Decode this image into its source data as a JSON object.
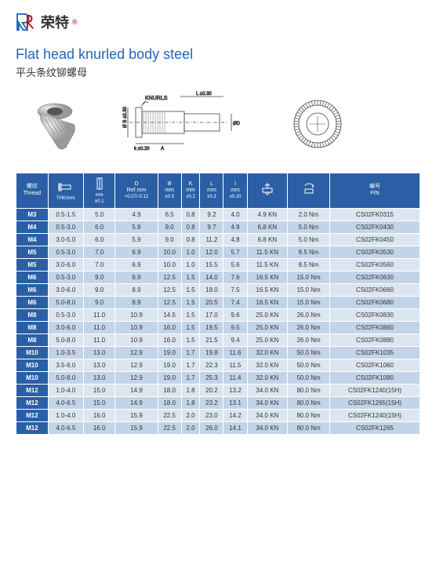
{
  "brand": {
    "name": "荣特",
    "sup": "®"
  },
  "title": {
    "en": "Flat head knurled body steel",
    "cn": "平头条纹铆螺母"
  },
  "diagram": {
    "knurls_label": "KNURLS"
  },
  "table": {
    "columns": [
      {
        "l1": "螺纹",
        "l2": "Thread",
        "sub": ""
      },
      {
        "l1": "",
        "l2": "THK/mm",
        "sub": ""
      },
      {
        "l1": "",
        "l2": "mm",
        "sub": "±0.1"
      },
      {
        "l1": "D",
        "l2": "Ref mm",
        "sub": "+0.07/-0.12"
      },
      {
        "l1": "B",
        "l2": "mm",
        "sub": "±0.3"
      },
      {
        "l1": "K",
        "l2": "mm",
        "sub": "±0.2"
      },
      {
        "l1": "L",
        "l2": "mm",
        "sub": "±0.3"
      },
      {
        "l1": "l",
        "l2": "mm",
        "sub": "±0.20"
      },
      {
        "l1": "",
        "l2": "",
        "sub": ""
      },
      {
        "l1": "",
        "l2": "",
        "sub": ""
      },
      {
        "l1": "编号",
        "l2": "P/N",
        "sub": ""
      }
    ],
    "rows": [
      [
        "M3",
        "0.5-1.5",
        "5.0",
        "4.9",
        "6.5",
        "0.8",
        "9.2",
        "4.0",
        "4.9 KN",
        "2.0 Nm",
        "CS02FK0315"
      ],
      [
        "M4",
        "0.5-3.0",
        "6.0",
        "5.9",
        "9.0",
        "0.8",
        "9.7",
        "4.9",
        "6.8 KN",
        "5.0 Nm",
        "CS02FK0430"
      ],
      [
        "M4",
        "3.0-5.0",
        "6.0",
        "5.9",
        "9.0",
        "0.8",
        "11.2",
        "4.8",
        "6.8 KN",
        "5.0 Nm",
        "CS02FK0450"
      ],
      [
        "M5",
        "0.5-3.0",
        "7.0",
        "6.9",
        "10.0",
        "1.0",
        "12.0",
        "5.7",
        "11.5 KN",
        "8.5 Nm",
        "CS02FK0530"
      ],
      [
        "M5",
        "3.0-6.0",
        "7.0",
        "6.9",
        "10.0",
        "1.0",
        "15.5",
        "5.6",
        "11.5 KN",
        "8.5 Nm",
        "CS02FK0560"
      ],
      [
        "M6",
        "0.5-3.0",
        "9.0",
        "8.9",
        "12.5",
        "1.5",
        "14.0",
        "7.6",
        "16.5 KN",
        "15.0 Nm",
        "CS02FK0630"
      ],
      [
        "M6",
        "3.0-6.0",
        "9.0",
        "8.9",
        "12.5",
        "1.5",
        "18.0",
        "7.5",
        "16.5 KN",
        "15.0 Nm",
        "CS02FK0660"
      ],
      [
        "M6",
        "5.0-8.0",
        "9.0",
        "8.9",
        "12.5",
        "1.5",
        "20.5",
        "7.4",
        "16.5 KN",
        "15.0 Nm",
        "CS02FK0680"
      ],
      [
        "M8",
        "0.5-3.0",
        "11.0",
        "10.9",
        "14.5",
        "1.5",
        "17.0",
        "9.6",
        "25.0 KN",
        "26.0 Nm",
        "CS02FK0830"
      ],
      [
        "M8",
        "3.0-6.0",
        "11.0",
        "10.9",
        "16.0",
        "1.5",
        "19.5",
        "9.5",
        "25.0 KN",
        "26.0 Nm",
        "CS02FK0860"
      ],
      [
        "M8",
        "5.0-8.0",
        "11.0",
        "10.9",
        "16.0",
        "1.5",
        "21.5",
        "9.4",
        "25.0 KN",
        "26.0 Nm",
        "CS02FK0880"
      ],
      [
        "M10",
        "1.0-3.5",
        "13.0",
        "12.9",
        "19.0",
        "1.7",
        "19.8",
        "11.6",
        "32.0 KN",
        "50.0 Nm",
        "CS02FK1035"
      ],
      [
        "M10",
        "3.5-6.0",
        "13.0",
        "12.9",
        "19.0",
        "1.7",
        "22.3",
        "11.5",
        "32.0 KN",
        "50.0 Nm",
        "CS02FK1060"
      ],
      [
        "M10",
        "5.0-8.0",
        "13.0",
        "12.9",
        "19.0",
        "1.7",
        "25.3",
        "11.4",
        "32.0 KN",
        "50.0 Nm",
        "CS02FK1080"
      ],
      [
        "M12",
        "1.0-4.0",
        "15.0",
        "14.9",
        "18.0",
        "1.8",
        "20.2",
        "13.2",
        "34.0 KN",
        "80.0 Nm",
        "CS02FK1240(15H)"
      ],
      [
        "M12",
        "4.0-6.5",
        "15.0",
        "14.9",
        "18.0",
        "1.8",
        "23.2",
        "13.1",
        "34.0 KN",
        "80.0 Nm",
        "CS02FK1265(15H)"
      ],
      [
        "M12",
        "1.0-4.0",
        "16.0",
        "15.9",
        "22.5",
        "2.0",
        "23.0",
        "14.2",
        "34.0 KN",
        "80.0 Nm",
        "CS02FK1240(15H)"
      ],
      [
        "M12",
        "4.0-6.5",
        "16.0",
        "15.9",
        "22.5",
        "2.0",
        "26.0",
        "14.1",
        "34.0 KN",
        "80.0 Nm",
        "CS02FK1265"
      ]
    ]
  }
}
